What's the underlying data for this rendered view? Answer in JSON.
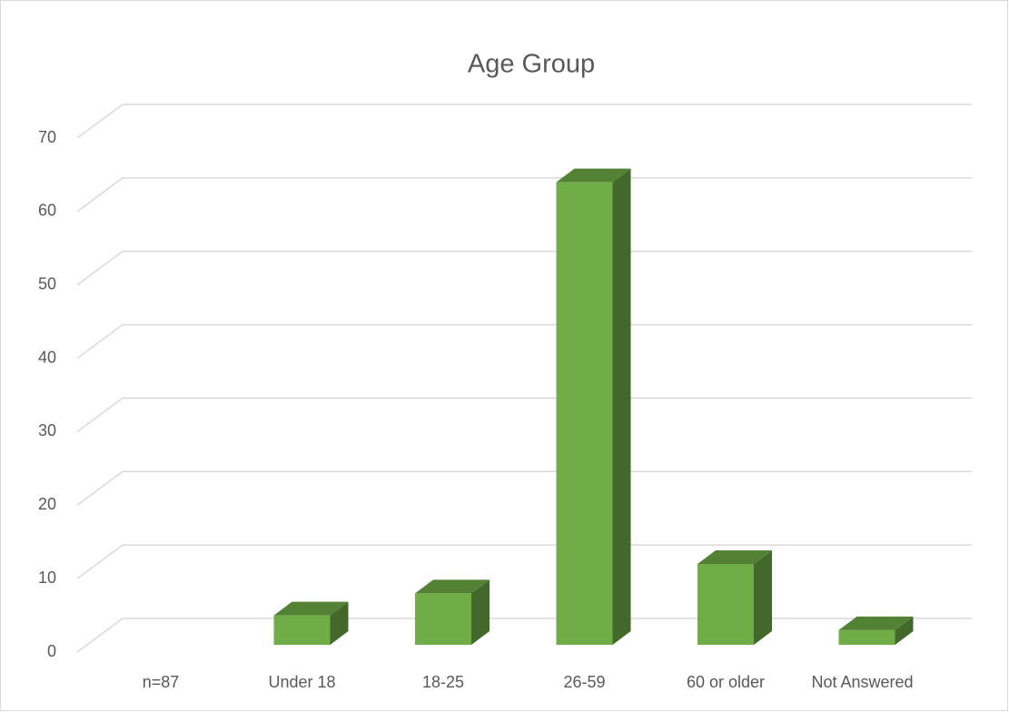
{
  "chart_data": {
    "type": "bar3d",
    "title": "Age Group",
    "categories": [
      "n=87",
      "Under 18",
      "18-25",
      "26-59",
      "60 or older",
      "Not Answered"
    ],
    "values": [
      null,
      4,
      7,
      63,
      11,
      2
    ],
    "color": "#70ad47",
    "ylim": [
      0,
      70
    ],
    "yticks": [
      0,
      10,
      20,
      30,
      40,
      50,
      60,
      70
    ],
    "grid": true
  }
}
